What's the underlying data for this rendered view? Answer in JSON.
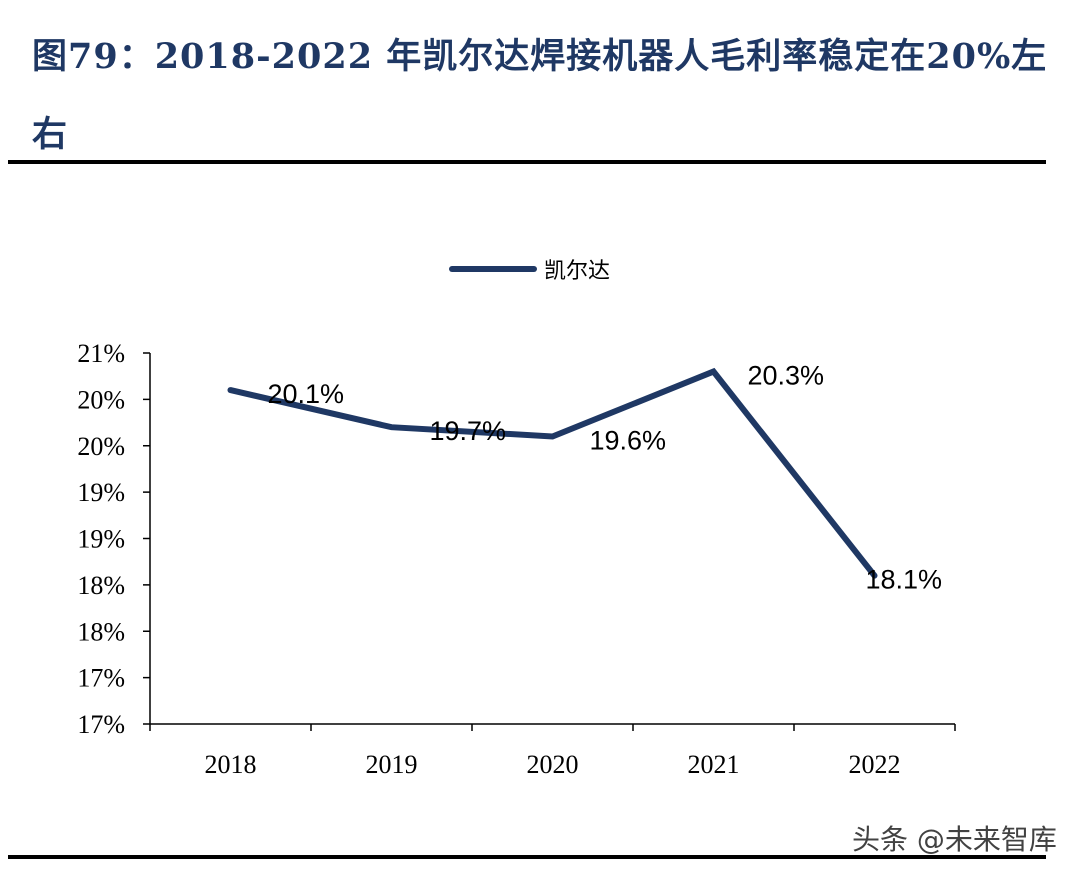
{
  "title": "图79：2018-2022 年凯尔达焊接机器人毛利率稳定在20%左右",
  "watermark": "头条 @未来智库",
  "chart_data": {
    "type": "line",
    "title": "",
    "xlabel": "",
    "ylabel": "",
    "categories": [
      "2018",
      "2019",
      "2020",
      "2021",
      "2022"
    ],
    "series": [
      {
        "name": "凯尔达",
        "values": [
          20.1,
          19.7,
          19.6,
          20.3,
          18.1
        ],
        "labels": [
          "20.1%",
          "19.7%",
          "19.6%",
          "20.3%",
          "18.1%"
        ],
        "color": "#1f3864"
      }
    ],
    "ylim": [
      16.5,
      20.5
    ],
    "yticks": [
      20.5,
      20.0,
      19.5,
      19.0,
      18.5,
      18.0,
      17.5,
      17.0,
      16.5
    ],
    "ytick_labels": [
      "21%",
      "20%",
      "20%",
      "19%",
      "19%",
      "18%",
      "18%",
      "17%",
      "17%"
    ],
    "grid": false,
    "legend_position": "top"
  }
}
